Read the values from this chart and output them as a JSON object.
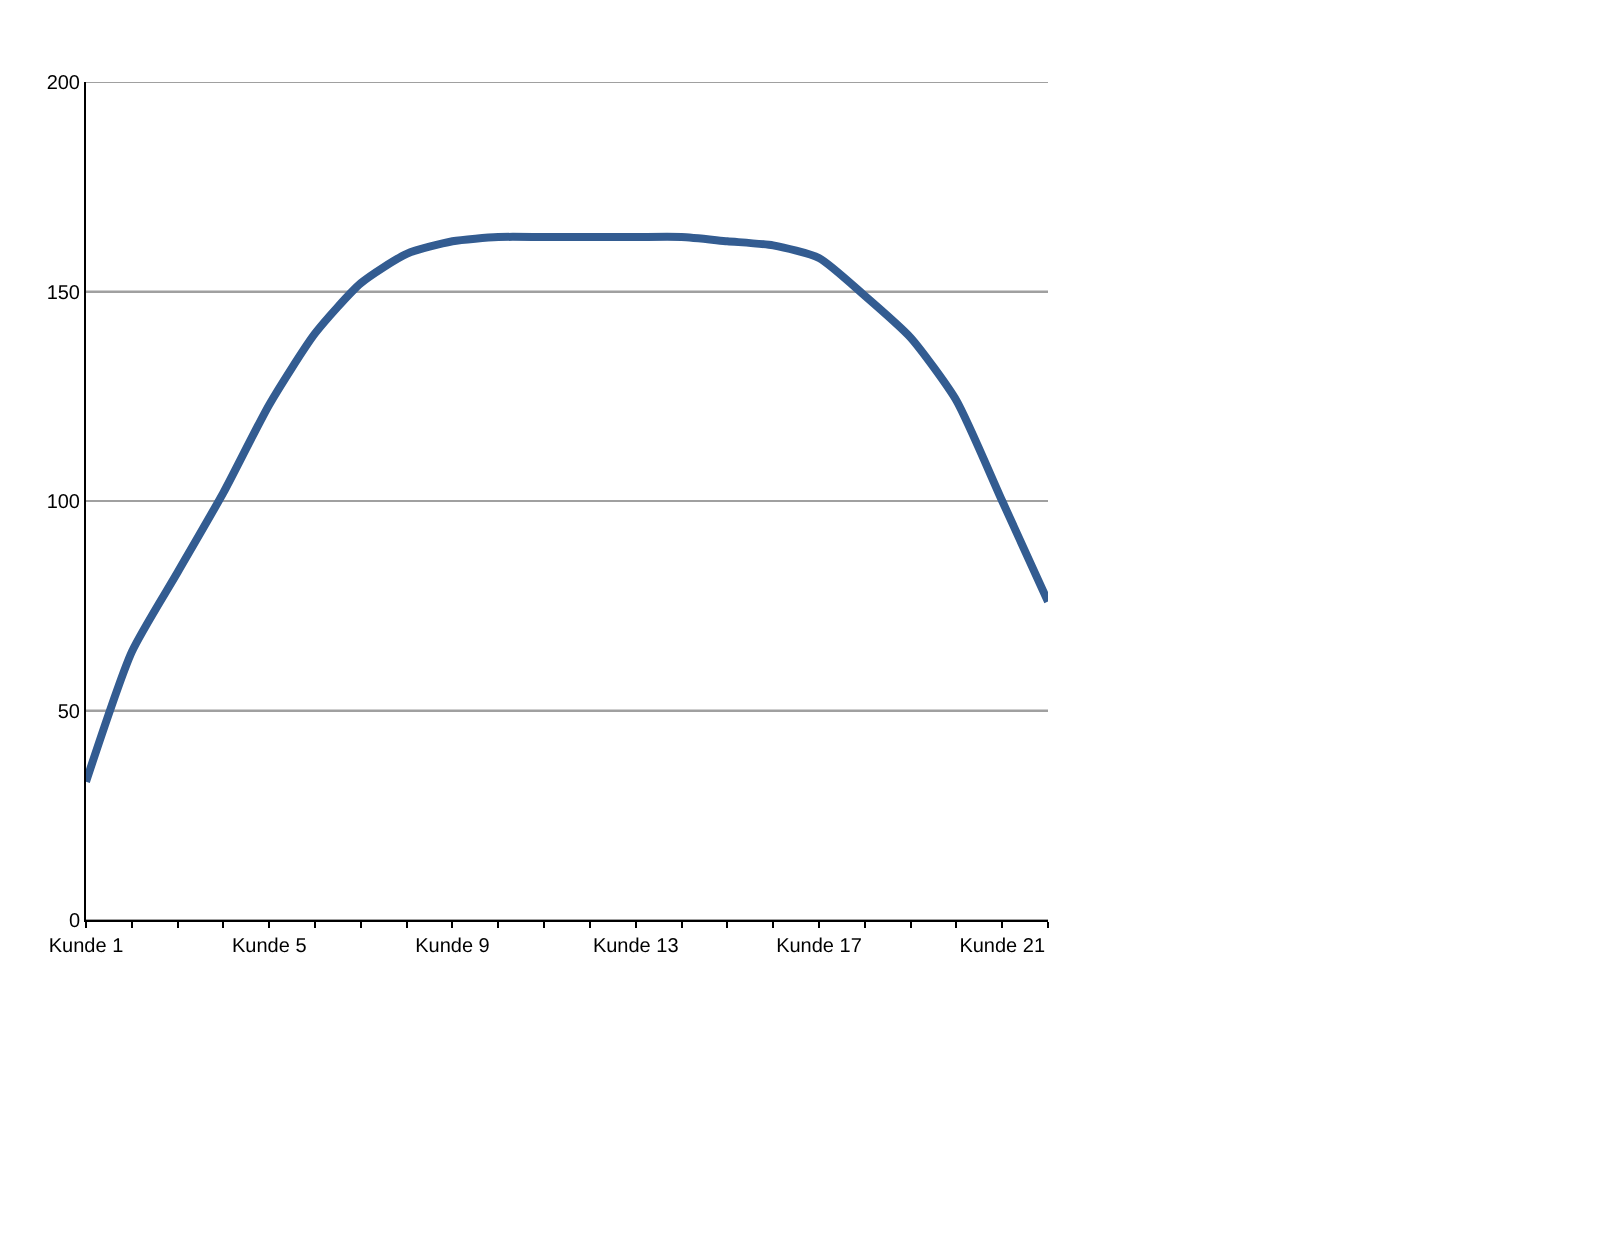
{
  "chart_data": {
    "type": "line",
    "categories": [
      "Kunde 1",
      null,
      null,
      null,
      "Kunde 5",
      null,
      null,
      null,
      "Kunde 9",
      null,
      null,
      null,
      "Kunde 13",
      null,
      null,
      null,
      "Kunde 17",
      null,
      null,
      null,
      "Kunde 21",
      null
    ],
    "series": [
      {
        "color": "#335c91",
        "values": [
          33,
          64,
          83,
          102,
          123,
          140,
          152,
          159,
          162,
          163,
          163,
          163,
          163,
          163,
          162,
          161,
          158,
          149,
          139,
          124,
          100,
          76
        ]
      }
    ],
    "ylim": [
      0,
      200
    ],
    "yticks": [
      0,
      50,
      100,
      150,
      200
    ],
    "grid": "y",
    "marker": "none",
    "line_style": "solid"
  }
}
